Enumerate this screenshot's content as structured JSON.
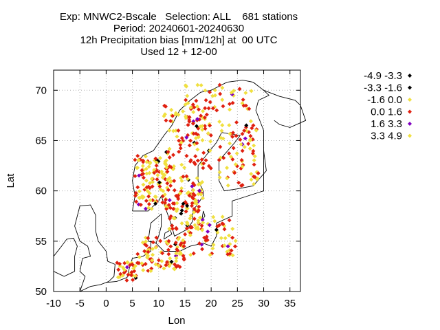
{
  "title_lines": [
    "Exp: MNWC2-Bscale   Selection: ALL    681 stations",
    "Period: 20240601-20240630",
    "12h Precipitation bias [mm/12h] at  00 UTC",
    "Used 12 + 12-00"
  ],
  "chart_data": {
    "type": "scatter",
    "xlabel": "Lon",
    "ylabel": "Lat",
    "xlim": [
      -10,
      37
    ],
    "ylim": [
      50,
      72
    ],
    "xticks": [
      -10,
      -5,
      0,
      5,
      10,
      15,
      20,
      25,
      30,
      35
    ],
    "yticks": [
      50,
      55,
      60,
      65,
      70
    ],
    "grid": true,
    "legend_position": "right",
    "legend": [
      {
        "label": "-4.9 -3.3",
        "color": "#000000"
      },
      {
        "label": "-3.3 -1.6",
        "color": "#000000"
      },
      {
        "label": "-1.6 0.0",
        "color": "#f0e040"
      },
      {
        "label": "0.0 1.6",
        "color": "#e02010"
      },
      {
        "label": "1.6 3.3",
        "color": "#8000c0"
      },
      {
        "label": "3.3 4.9",
        "color": "#f0e040"
      }
    ],
    "coastlines": [
      {
        "name": "norway-sweden-finland",
        "points": [
          [
            5,
            58
          ],
          [
            5.5,
            59.5
          ],
          [
            5,
            61
          ],
          [
            5.5,
            62.5
          ],
          [
            7,
            63.5
          ],
          [
            9,
            64
          ],
          [
            11,
            65.5
          ],
          [
            12.5,
            66.5
          ],
          [
            14,
            68
          ],
          [
            16,
            69
          ],
          [
            18,
            69.8
          ],
          [
            20,
            70
          ],
          [
            23,
            70.8
          ],
          [
            26,
            71
          ],
          [
            28,
            70.8
          ],
          [
            30,
            70
          ],
          [
            31,
            69.5
          ],
          [
            29,
            69
          ],
          [
            28.5,
            68
          ],
          [
            30,
            66
          ],
          [
            30,
            64
          ],
          [
            30.5,
            62
          ],
          [
            28,
            60.5
          ],
          [
            25,
            60.2
          ],
          [
            22.5,
            60
          ],
          [
            21.5,
            61
          ],
          [
            21.5,
            63
          ],
          [
            24.5,
            64.8
          ],
          [
            25.5,
            65.5
          ],
          [
            22,
            65.8
          ],
          [
            21,
            64.8
          ],
          [
            19,
            63.5
          ],
          [
            17.5,
            62.5
          ],
          [
            17.5,
            61
          ],
          [
            18.5,
            60
          ],
          [
            18.5,
            59.5
          ],
          [
            16.5,
            58
          ],
          [
            16.5,
            57
          ],
          [
            15.5,
            56.2
          ],
          [
            13,
            55.5
          ],
          [
            12.5,
            56.5
          ],
          [
            11.5,
            58
          ],
          [
            10.5,
            59.5
          ],
          [
            10,
            59
          ],
          [
            8,
            58
          ],
          [
            6,
            58
          ],
          [
            5,
            58
          ]
        ]
      },
      {
        "name": "denmark",
        "points": [
          [
            8,
            55
          ],
          [
            8.5,
            56.8
          ],
          [
            10.5,
            57.7
          ],
          [
            10.5,
            56.5
          ],
          [
            10,
            55.5
          ],
          [
            9.5,
            54.8
          ],
          [
            8,
            55
          ]
        ]
      },
      {
        "name": "zealand",
        "points": [
          [
            11,
            55.2
          ],
          [
            12.5,
            55.7
          ],
          [
            12.2,
            56.1
          ],
          [
            11.2,
            55.8
          ],
          [
            11,
            55.2
          ]
        ]
      },
      {
        "name": "continent",
        "points": [
          [
            0,
            50.9
          ],
          [
            2,
            51
          ],
          [
            4,
            51.4
          ],
          [
            4.5,
            52.5
          ],
          [
            5,
            53.3
          ],
          [
            7,
            53.5
          ],
          [
            8.5,
            54
          ],
          [
            8.5,
            55
          ],
          [
            9.5,
            54.8
          ],
          [
            11,
            54
          ],
          [
            14,
            54
          ],
          [
            16,
            54.5
          ],
          [
            18.5,
            54.8
          ],
          [
            20,
            54.5
          ],
          [
            21,
            55.5
          ],
          [
            21,
            56.8
          ],
          [
            24,
            57.5
          ],
          [
            24,
            59
          ],
          [
            27,
            59.5
          ],
          [
            30,
            60
          ],
          [
            30,
            64
          ]
        ]
      },
      {
        "name": "britain",
        "points": [
          [
            -5,
            50
          ],
          [
            -4,
            51.5
          ],
          [
            -5,
            52
          ],
          [
            -4.5,
            53.3
          ],
          [
            -3,
            53.5
          ],
          [
            -3.5,
            54.5
          ],
          [
            -5,
            55
          ],
          [
            -6,
            56.5
          ],
          [
            -5.5,
            57.5
          ],
          [
            -5,
            58.5
          ],
          [
            -3,
            58.6
          ],
          [
            -2,
            57.6
          ],
          [
            -2,
            56
          ],
          [
            -1.5,
            55
          ],
          [
            0,
            54
          ],
          [
            0.3,
            53
          ],
          [
            1.7,
            52.7
          ],
          [
            1.5,
            51.5
          ],
          [
            0.5,
            51
          ],
          [
            -1,
            50.7
          ],
          [
            -3,
            50.5
          ],
          [
            -5,
            50
          ]
        ]
      },
      {
        "name": "ireland",
        "points": [
          [
            -6,
            52
          ],
          [
            -6,
            53.5
          ],
          [
            -5.5,
            54.5
          ],
          [
            -6.2,
            55.3
          ],
          [
            -7.5,
            55.2
          ],
          [
            -8.5,
            54.5
          ],
          [
            -10,
            53.5
          ],
          [
            -10,
            52
          ],
          [
            -8,
            51.5
          ],
          [
            -6,
            52
          ]
        ]
      },
      {
        "name": "gotland",
        "points": [
          [
            18.2,
            57
          ],
          [
            18.8,
            57.5
          ],
          [
            18.5,
            58
          ],
          [
            18.2,
            57
          ]
        ]
      },
      {
        "name": "kola",
        "points": [
          [
            30,
            70
          ],
          [
            33,
            69.4
          ],
          [
            36,
            69
          ],
          [
            37,
            68.5
          ],
          [
            38,
            67
          ],
          [
            35,
            66.3
          ],
          [
            33,
            66.6
          ],
          [
            32,
            67
          ]
        ]
      }
    ]
  }
}
